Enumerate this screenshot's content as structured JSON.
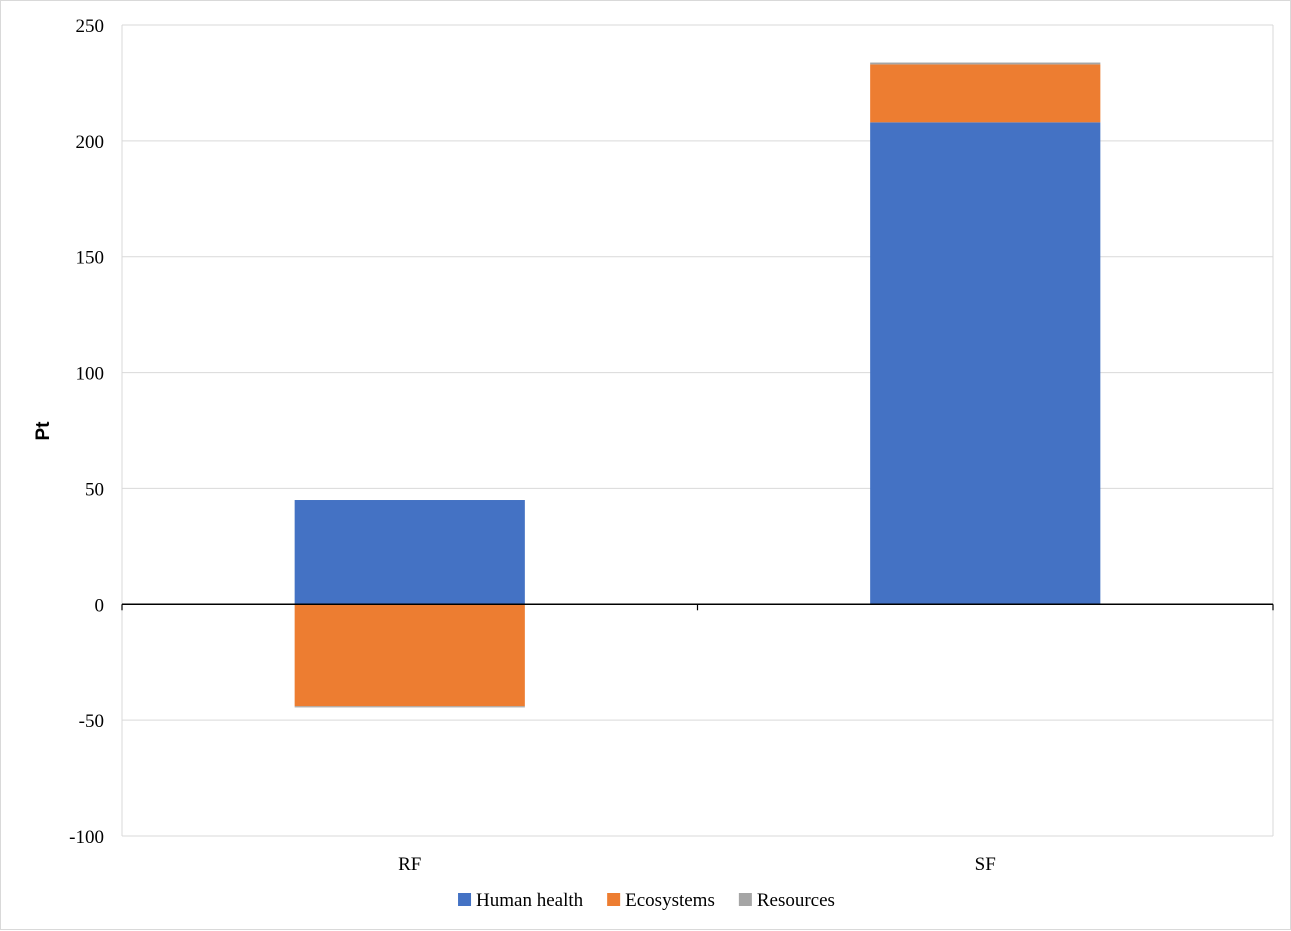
{
  "chart_data": {
    "type": "bar",
    "stacked": true,
    "title": "",
    "xlabel": "",
    "ylabel": "Pt",
    "ylim": [
      -100,
      250
    ],
    "yticks": [
      -100,
      -50,
      0,
      50,
      100,
      150,
      200,
      250
    ],
    "grid": true,
    "legend_position": "bottom",
    "categories": [
      "RF",
      "SF"
    ],
    "series": [
      {
        "name": "Human health",
        "color": "#4472c4",
        "values": [
          45,
          208
        ]
      },
      {
        "name": "Ecosystems",
        "color": "#ed7d31",
        "values": [
          -44,
          25
        ]
      },
      {
        "name": "Resources",
        "color": "#a5a5a5",
        "values": [
          -0.5,
          0.8
        ]
      }
    ]
  }
}
